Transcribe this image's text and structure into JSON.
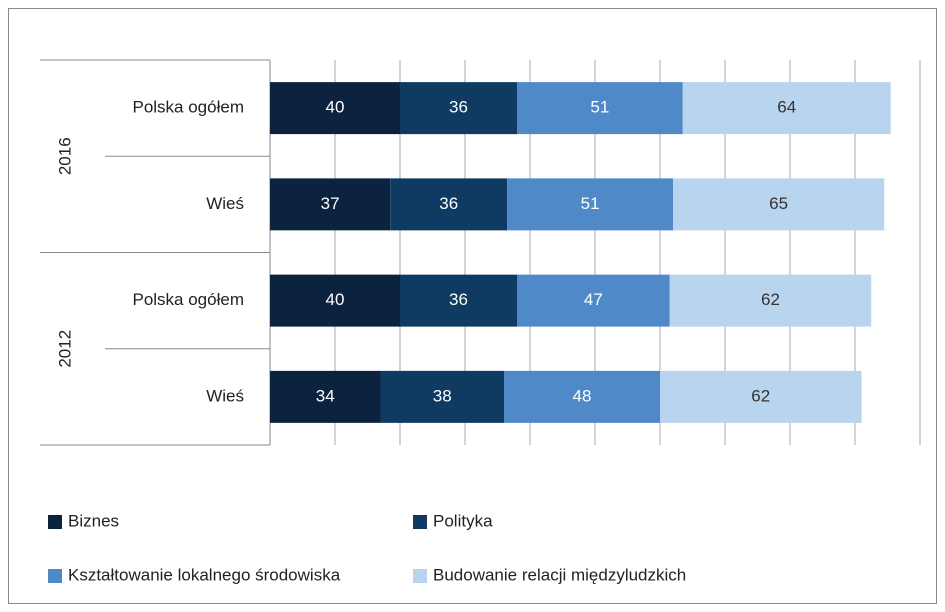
{
  "chart_data": {
    "type": "stacked_bar_horizontal",
    "categories": [
      [
        "2016",
        "Polska ogółem"
      ],
      [
        "2016",
        "Wieś"
      ],
      [
        "2012",
        "Polska ogółem"
      ],
      [
        "2012",
        "Wieś"
      ]
    ],
    "series": [
      {
        "name": "Biznes",
        "color": "#0c2340",
        "values": [
          40,
          37,
          40,
          34
        ]
      },
      {
        "name": "Polityka",
        "color": "#0f3b62",
        "values": [
          36,
          36,
          36,
          38
        ]
      },
      {
        "name": "Kształtowanie lokalnego środowiska",
        "color": "#4f89c8",
        "values": [
          51,
          51,
          47,
          48
        ]
      },
      {
        "name": "Budowanie relacji międzyludzkich",
        "color": "#b9d4ef",
        "values": [
          64,
          65,
          62,
          62
        ]
      }
    ],
    "xlim": [
      0,
      200
    ],
    "xticks": [
      0,
      20,
      40,
      60,
      80,
      100,
      120,
      140,
      160,
      180,
      200
    ],
    "grid": true
  }
}
